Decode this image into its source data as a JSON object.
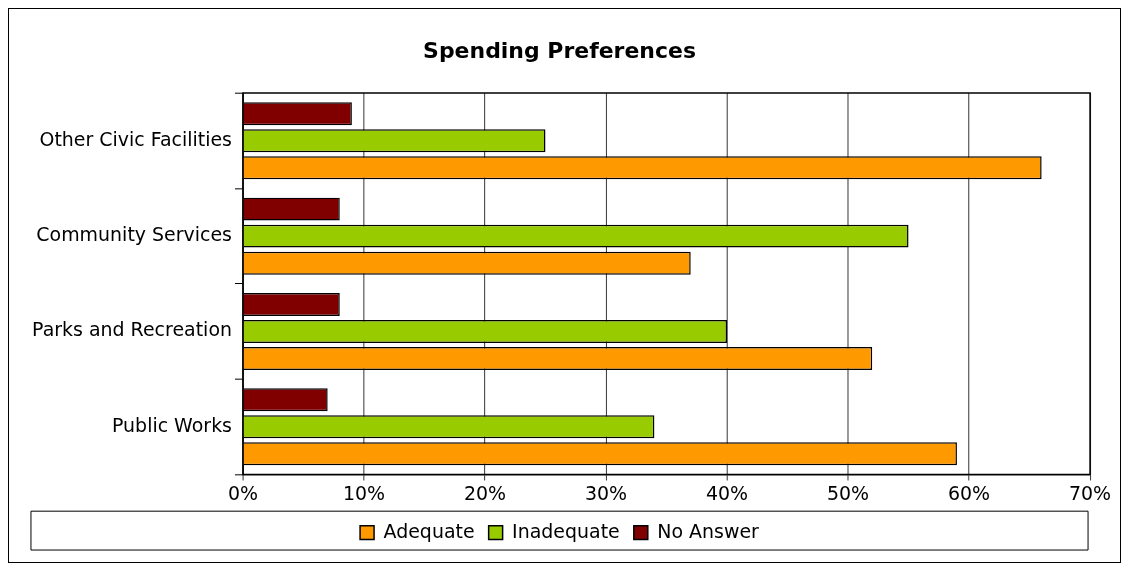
{
  "chart_data": {
    "type": "bar",
    "orientation": "horizontal",
    "title": "Spending Preferences",
    "categories": [
      "Other Civic Facilities",
      "Community Services",
      "Parks and Recreation",
      "Public Works"
    ],
    "series": [
      {
        "name": "Adequate",
        "color": "#ff9900",
        "values": [
          66,
          37,
          52,
          59
        ]
      },
      {
        "name": "Inadequate",
        "color": "#99cc00",
        "values": [
          25,
          55,
          40,
          34
        ]
      },
      {
        "name": "No Answer",
        "color": "#800000",
        "values": [
          9,
          8,
          8,
          7
        ]
      }
    ],
    "xlim": [
      0,
      70
    ],
    "xticks": [
      {
        "value": 0,
        "label": "0%"
      },
      {
        "value": 10,
        "label": "10%"
      },
      {
        "value": 20,
        "label": "20%"
      },
      {
        "value": 30,
        "label": "30%"
      },
      {
        "value": 40,
        "label": "40%"
      },
      {
        "value": 50,
        "label": "50%"
      },
      {
        "value": 60,
        "label": "60%"
      },
      {
        "value": 70,
        "label": "70%"
      }
    ],
    "grid": "x",
    "legend": "bottom"
  }
}
